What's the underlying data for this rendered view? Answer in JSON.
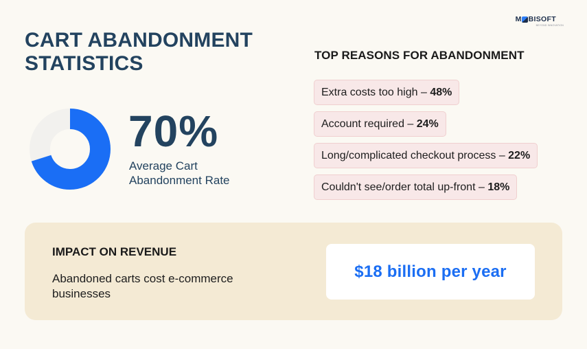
{
  "brand": {
    "logo_prefix": "M",
    "logo_suffix": "BISOFT",
    "logo_tagline": "BEYOND INNOVATION",
    "icon": "mobisoft-logo"
  },
  "title": {
    "line1": "CART ABANDONMENT",
    "line2": "STATISTICS"
  },
  "headline_stat": {
    "value": "70%",
    "fraction": 0.7,
    "label": "Average Cart Abandonment Rate",
    "colors": {
      "fill": "#1a6ef5",
      "track": "#f2f1ee"
    }
  },
  "reasons": {
    "heading": "TOP REASONS FOR ABANDONMENT",
    "items": [
      {
        "text": "Extra costs too high – ",
        "value": "48%"
      },
      {
        "text": "Account required – ",
        "value": "24%"
      },
      {
        "text": "Long/complicated checkout process – ",
        "value": "22%"
      },
      {
        "text": "Couldn't see/order total up-front – ",
        "value": "18%"
      }
    ]
  },
  "impact": {
    "heading": "IMPACT ON REVENUE",
    "description": "Abandoned carts cost e-commerce businesses",
    "value": "$18 billion per year"
  },
  "colors": {
    "background": "#fbf9f3",
    "title": "#23435f",
    "accent_blue": "#1b6ef3",
    "reason_bg": "#f8e8e8",
    "impact_bg": "#f4ead4"
  }
}
